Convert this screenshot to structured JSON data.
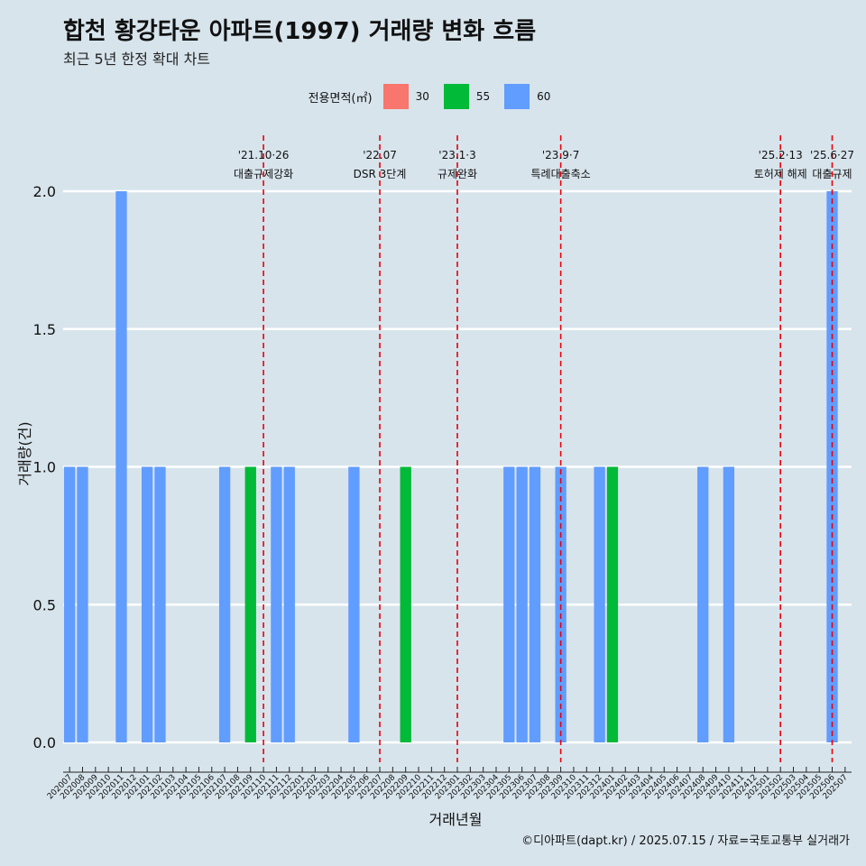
{
  "title": "합천 황강타운 아파트(1997) 거래량 변화 흐름",
  "subtitle": "최근 5년 한정 확대 차트",
  "legend": {
    "title": "전용면적(㎡)",
    "items": [
      {
        "label": "30",
        "color": "#f8766d"
      },
      {
        "label": "55",
        "color": "#00ba38"
      },
      {
        "label": "60",
        "color": "#619cff"
      }
    ]
  },
  "caption": "©디아파트(dapt.kr) / 2025.07.15 / 자료=국토교통부 실거래가",
  "chart_data": {
    "type": "bar",
    "xlabel": "거래년월",
    "ylabel": "거래량(건)",
    "ylim": [
      0,
      2
    ],
    "yticks": [
      "0.0",
      "0.5",
      "1.0",
      "1.5",
      "2.0"
    ],
    "grid": true,
    "legend_position": "top",
    "categories": [
      "202007",
      "202008",
      "202009",
      "202010",
      "202011",
      "202012",
      "202101",
      "202102",
      "202103",
      "202104",
      "202105",
      "202106",
      "202107",
      "202108",
      "202109",
      "202110",
      "202111",
      "202112",
      "202201",
      "202202",
      "202203",
      "202204",
      "202205",
      "202206",
      "202207",
      "202208",
      "202209",
      "202210",
      "202211",
      "202212",
      "202301",
      "202302",
      "202303",
      "202304",
      "202305",
      "202306",
      "202307",
      "202308",
      "202309",
      "202310",
      "202311",
      "202312",
      "202401",
      "202402",
      "202403",
      "202404",
      "202405",
      "202406",
      "202407",
      "202408",
      "202409",
      "202410",
      "202411",
      "202412",
      "202501",
      "202502",
      "202503",
      "202504",
      "202505",
      "202506",
      "202507"
    ],
    "series": [
      {
        "name": "30",
        "color": "#f8766d",
        "values": [
          0,
          0,
          0,
          0,
          0,
          0,
          0,
          0,
          0,
          0,
          0,
          0,
          0,
          0,
          0,
          0,
          0,
          0,
          0,
          0,
          0,
          0,
          0,
          0,
          0,
          0,
          0,
          0,
          0,
          0,
          0,
          0,
          0,
          0,
          0,
          0,
          0,
          0,
          0,
          0,
          0,
          0,
          0,
          0,
          0,
          0,
          0,
          0,
          0,
          0,
          0,
          0,
          0,
          0,
          0,
          0,
          0,
          0,
          0,
          0,
          0
        ]
      },
      {
        "name": "55",
        "color": "#00ba38",
        "values": [
          0,
          0,
          0,
          0,
          0,
          0,
          0,
          0,
          0,
          0,
          0,
          0,
          0,
          0,
          1,
          0,
          0,
          0,
          0,
          0,
          0,
          0,
          0,
          0,
          0,
          0,
          1,
          0,
          0,
          0,
          0,
          0,
          0,
          0,
          0,
          0,
          0,
          0,
          0,
          0,
          0,
          0,
          1,
          0,
          0,
          0,
          0,
          0,
          0,
          0,
          0,
          0,
          0,
          0,
          0,
          0,
          0,
          0,
          0,
          0,
          0
        ]
      },
      {
        "name": "60",
        "color": "#619cff",
        "values": [
          1,
          1,
          0,
          0,
          2,
          0,
          1,
          1,
          0,
          0,
          0,
          0,
          1,
          0,
          0,
          0,
          1,
          1,
          0,
          0,
          0,
          0,
          1,
          0,
          0,
          0,
          0,
          0,
          0,
          0,
          0,
          0,
          0,
          0,
          1,
          1,
          1,
          0,
          1,
          0,
          0,
          1,
          0,
          0,
          0,
          0,
          0,
          0,
          0,
          1,
          0,
          1,
          0,
          0,
          0,
          0,
          0,
          0,
          0,
          2,
          0
        ]
      }
    ],
    "annotations": [
      {
        "at": "202110",
        "date": "'21.10·26",
        "text": "대출규제강화"
      },
      {
        "at": "202207",
        "date": "'22.07",
        "text": "DSR 3단계"
      },
      {
        "at": "202301",
        "date": "'23.1·3",
        "text": "규제완화"
      },
      {
        "at": "202309",
        "date": "'23.9·7",
        "text": "특례대출축소"
      },
      {
        "at": "202502",
        "date": "'25.2·13",
        "text": "토허제 해제"
      },
      {
        "at": "202506",
        "date": "'25.6·27",
        "text": "대출규제"
      }
    ]
  }
}
